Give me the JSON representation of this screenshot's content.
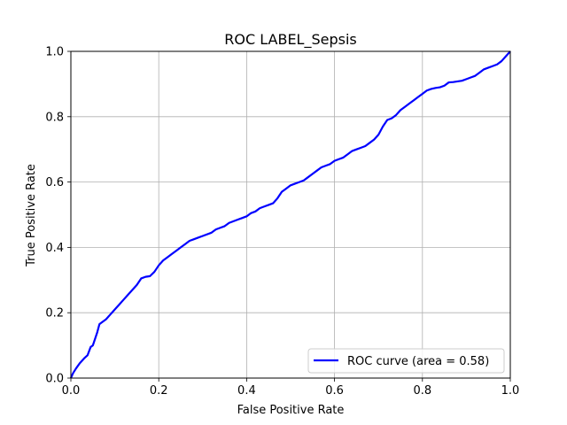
{
  "chart_data": {
    "type": "line",
    "title": "ROC LABEL_Sepsis",
    "xlabel": "False Positive Rate",
    "ylabel": "True Positive Rate",
    "xlim": [
      0.0,
      1.0
    ],
    "ylim": [
      0.0,
      1.0
    ],
    "grid": true,
    "legend": "lower-right",
    "x_ticks": [
      "0.0",
      "0.2",
      "0.4",
      "0.6",
      "0.8",
      "1.0"
    ],
    "y_ticks": [
      "0.0",
      "0.2",
      "0.4",
      "0.6",
      "0.8",
      "1.0"
    ],
    "series": [
      {
        "name": "ROC curve (area = 0.58)",
        "color": "#0000ff",
        "x": [
          0.0,
          0.005,
          0.012,
          0.02,
          0.03,
          0.038,
          0.045,
          0.05,
          0.055,
          0.06,
          0.065,
          0.07,
          0.08,
          0.09,
          0.1,
          0.11,
          0.12,
          0.13,
          0.14,
          0.15,
          0.16,
          0.17,
          0.18,
          0.19,
          0.2,
          0.21,
          0.22,
          0.23,
          0.24,
          0.25,
          0.26,
          0.27,
          0.28,
          0.29,
          0.3,
          0.32,
          0.33,
          0.34,
          0.35,
          0.36,
          0.37,
          0.38,
          0.39,
          0.4,
          0.41,
          0.42,
          0.43,
          0.44,
          0.45,
          0.46,
          0.47,
          0.48,
          0.49,
          0.5,
          0.51,
          0.52,
          0.53,
          0.54,
          0.55,
          0.56,
          0.57,
          0.58,
          0.59,
          0.6,
          0.61,
          0.62,
          0.63,
          0.64,
          0.65,
          0.66,
          0.67,
          0.68,
          0.69,
          0.7,
          0.71,
          0.72,
          0.73,
          0.74,
          0.75,
          0.76,
          0.77,
          0.78,
          0.79,
          0.8,
          0.81,
          0.82,
          0.83,
          0.84,
          0.85,
          0.86,
          0.87,
          0.88,
          0.89,
          0.9,
          0.91,
          0.92,
          0.93,
          0.94,
          0.95,
          0.96,
          0.97,
          0.98,
          0.99,
          1.0
        ],
        "y": [
          0.0,
          0.015,
          0.03,
          0.045,
          0.06,
          0.07,
          0.095,
          0.1,
          0.12,
          0.14,
          0.165,
          0.17,
          0.18,
          0.195,
          0.21,
          0.225,
          0.24,
          0.255,
          0.27,
          0.285,
          0.305,
          0.31,
          0.312,
          0.325,
          0.345,
          0.36,
          0.37,
          0.38,
          0.39,
          0.4,
          0.41,
          0.42,
          0.425,
          0.43,
          0.435,
          0.445,
          0.455,
          0.46,
          0.465,
          0.475,
          0.48,
          0.485,
          0.49,
          0.495,
          0.505,
          0.51,
          0.52,
          0.525,
          0.53,
          0.535,
          0.55,
          0.57,
          0.58,
          0.59,
          0.595,
          0.6,
          0.605,
          0.615,
          0.625,
          0.635,
          0.645,
          0.65,
          0.655,
          0.665,
          0.67,
          0.675,
          0.685,
          0.695,
          0.7,
          0.705,
          0.71,
          0.72,
          0.73,
          0.745,
          0.77,
          0.79,
          0.795,
          0.805,
          0.82,
          0.83,
          0.84,
          0.85,
          0.86,
          0.87,
          0.88,
          0.885,
          0.888,
          0.89,
          0.895,
          0.905,
          0.906,
          0.908,
          0.91,
          0.915,
          0.92,
          0.925,
          0.935,
          0.945,
          0.95,
          0.955,
          0.96,
          0.97,
          0.985,
          1.0
        ]
      }
    ]
  }
}
